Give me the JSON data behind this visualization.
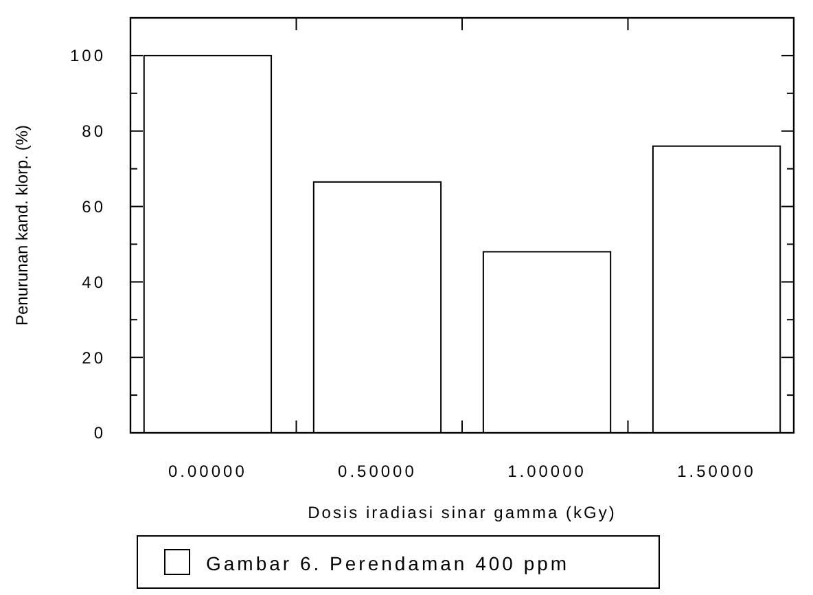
{
  "chart_data": {
    "type": "bar",
    "xlabel": "Dosis iradiasi sinar gamma (kGy)",
    "ylabel": "Penurunan kand. klorp. (%)",
    "categories": [
      "0.00000",
      "0.50000",
      "1.00000",
      "1.50000"
    ],
    "series": [
      {
        "name": "Gambar 6. Perendaman 400 ppm",
        "color": "#ffffff",
        "values": [
          100,
          66.5,
          48,
          76
        ]
      }
    ],
    "ylim": [
      0,
      110
    ],
    "yticks": [
      0,
      {
        "value": 10,
        "label": null
      },
      20,
      {
        "value": 30,
        "label": null
      },
      40,
      {
        "value": 50,
        "label": null
      },
      60,
      {
        "value": 70,
        "label": null
      },
      80,
      {
        "value": 90,
        "label": null
      },
      100
    ],
    "grid": false,
    "legend": "bottom"
  }
}
